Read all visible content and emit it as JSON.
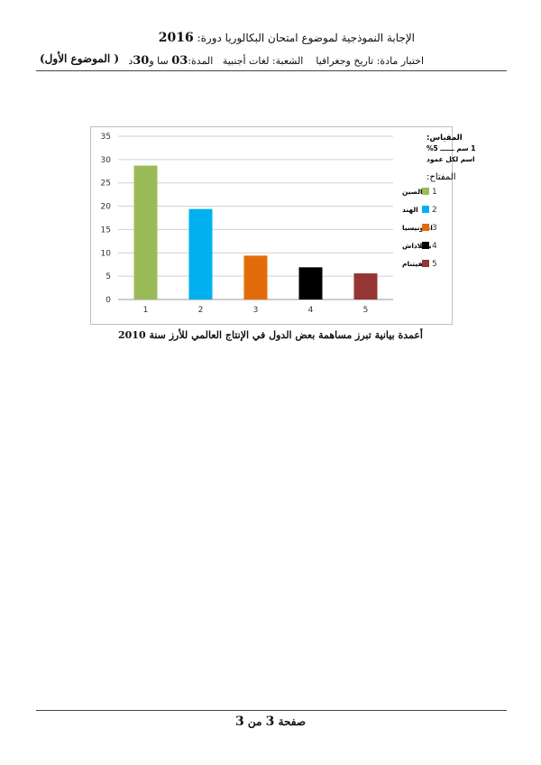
{
  "header": {
    "line1": "الإجابة النموذجية لموضوع امتحان البكالوريا دورة:",
    "year": "2016",
    "line2_parts": [
      "اختبار مادة: تاريخ وجغرافيا",
      "الشعبة: لغات أجنبية",
      "المدة:",
      "03",
      "سا و",
      "30",
      "د"
    ],
    "subject_tag": "( الموضوع الأول)"
  },
  "chart_data": {
    "type": "bar",
    "categories": [
      "1",
      "2",
      "3",
      "4",
      "5"
    ],
    "values": [
      28.7,
      19.4,
      9.4,
      6.9,
      5.6
    ],
    "colors": [
      "#9bbb59",
      "#00b0f0",
      "#e36c0a",
      "#000000",
      "#943634"
    ],
    "ylim": [
      0,
      35
    ],
    "yticks": [
      "0",
      "5",
      "10",
      "15",
      "20",
      "25",
      "30",
      "35"
    ],
    "grid": true,
    "legend_title": "المفتاح:",
    "legend": [
      {
        "num": "1",
        "label": "الصين",
        "color": "#9bbb59"
      },
      {
        "num": "2",
        "label": "الهند",
        "color": "#00b0f0"
      },
      {
        "num": "3",
        "label": "اندونيسيا",
        "color": "#e36c0a"
      },
      {
        "num": "4",
        "label": "بنغلاداش",
        "color": "#000000"
      },
      {
        "num": "5",
        "label": "الفيتنام",
        "color": "#943634"
      }
    ],
    "scale_title": "المقياس:",
    "scale_line": "1 سم ــــــ 5%",
    "scale_line2": "اسم لكل عمود"
  },
  "caption": "أعمدة بيانية تبرز مساهمة بعض الدول في الإنتاج العالمي للأرز سنة 2010",
  "footer": {
    "word": "صفحة",
    "page": "3",
    "of": "من",
    "total": "3"
  }
}
